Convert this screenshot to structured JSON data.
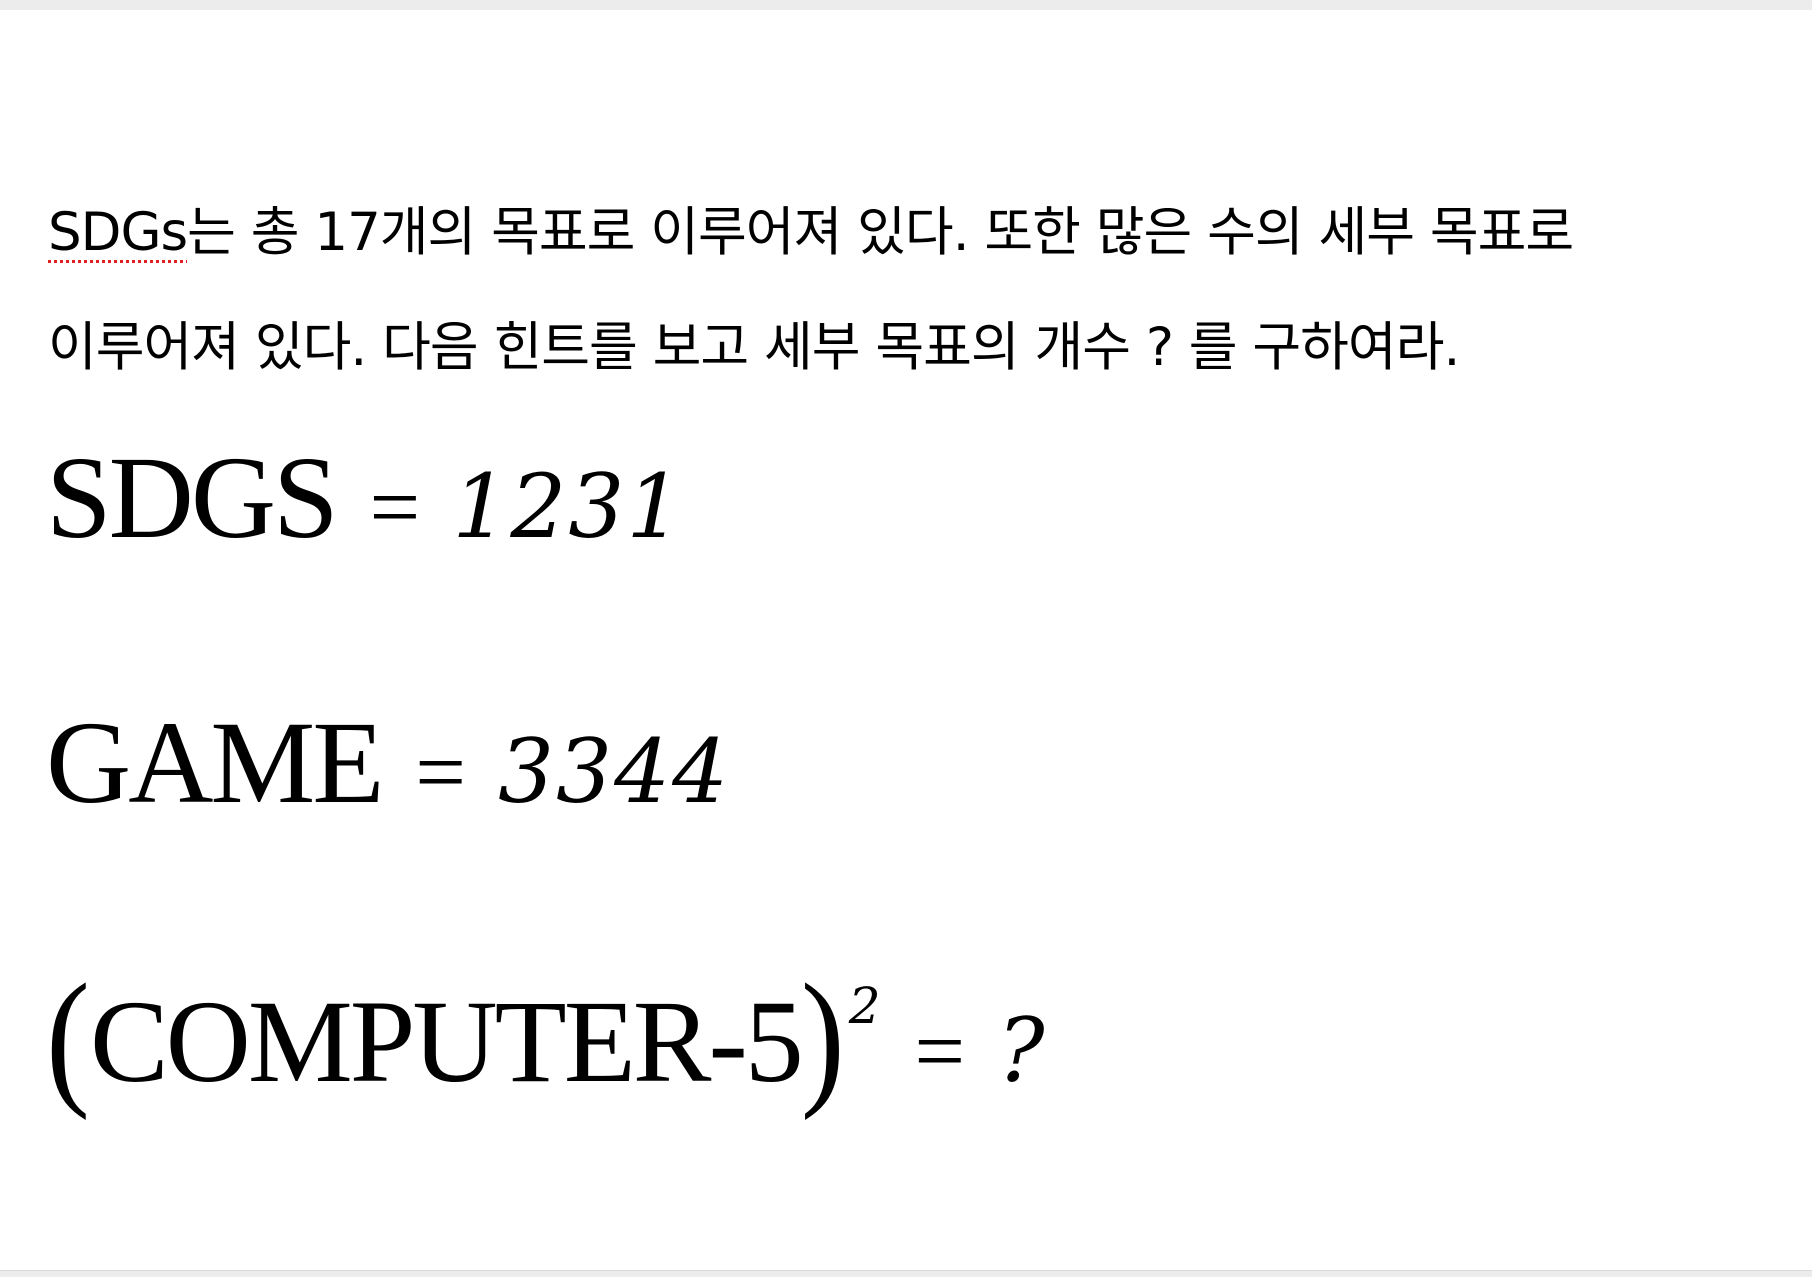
{
  "problem": {
    "term": "SDGs",
    "line1_rest": "는 총 17개의 목표로 이루어져 있다. 또한 많은 수의 세부 목표로",
    "line2": "이루어져 있다. 다음 힌트를 보고 세부 목표의 개수 ? 를 구하여라."
  },
  "equations": [
    {
      "lhs": "SDGS",
      "op": "=",
      "rhs": "1231"
    },
    {
      "lhs": "GAME",
      "op": "=",
      "rhs": "3344"
    },
    {
      "open_paren": "(",
      "lhs": "COMPUTER-5",
      "close_paren": ")",
      "exponent": "2",
      "op": "=",
      "rhs": "?"
    }
  ]
}
